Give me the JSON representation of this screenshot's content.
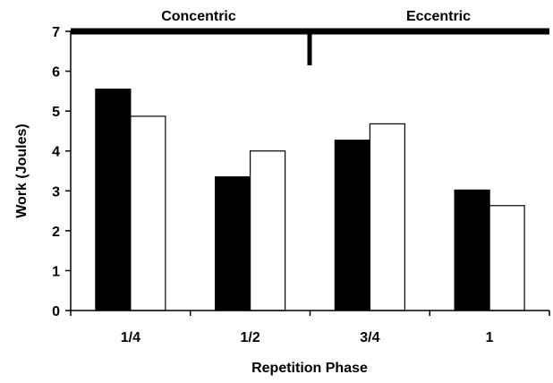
{
  "chart_data": {
    "type": "bar",
    "title": "",
    "xlabel": "Repetition Phase",
    "ylabel": "Work (Joules)",
    "ylim": [
      0,
      7
    ],
    "yticks": [
      "0",
      "1",
      "2",
      "3",
      "4",
      "5",
      "6",
      "7"
    ],
    "categories": [
      "1/4",
      "1/2",
      "3/4",
      "1"
    ],
    "series": [
      {
        "values": [
          5.55,
          3.35,
          4.27,
          3.02
        ],
        "color": "#000000"
      },
      {
        "values": [
          4.87,
          4.0,
          4.68,
          2.63
        ],
        "color": "#ffffff"
      }
    ],
    "grid": false,
    "legend": "none",
    "phase_labels": [
      {
        "text": "Concentric",
        "covers": [
          "1/4",
          "1/2"
        ]
      },
      {
        "text": "Eccentric",
        "covers": [
          "3/4",
          "1"
        ]
      }
    ]
  }
}
